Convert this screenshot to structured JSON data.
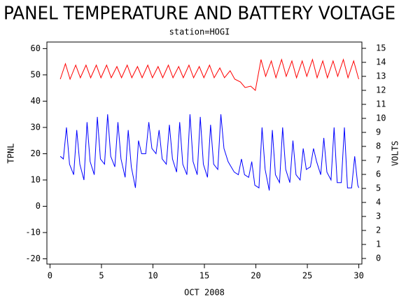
{
  "chart_data": {
    "type": "line",
    "title": "PANEL TEMPERATURE AND BATTERY VOLTAGE",
    "subtitle": "station=HOGI",
    "x_label": "OCT 2008",
    "y_label": "TPNL",
    "y2_label": "VOLTS",
    "xlim": [
      -0.3,
      30.3
    ],
    "xticks": [
      0,
      5,
      10,
      15,
      20,
      25,
      30
    ],
    "ylim": [
      -22,
      62.5
    ],
    "yticks": [
      -20,
      -10,
      0,
      10,
      20,
      30,
      40,
      50,
      60
    ],
    "y2lim": [
      -0.4,
      15.45
    ],
    "y2ticks": [
      0,
      1,
      2,
      3,
      4,
      5,
      6,
      7,
      8,
      9,
      10,
      11,
      12,
      13,
      14,
      15
    ],
    "series": [
      {
        "name": "TPNL",
        "color": "#0000ff",
        "axis": "y",
        "x": [
          1.0,
          1.3,
          1.6,
          1.9,
          2.3,
          2.6,
          2.9,
          3.3,
          3.6,
          3.9,
          4.3,
          4.6,
          4.9,
          5.3,
          5.6,
          5.9,
          6.3,
          6.6,
          6.9,
          7.3,
          7.6,
          7.9,
          8.3,
          8.6,
          8.9,
          9.3,
          9.6,
          9.9,
          10.3,
          10.6,
          10.9,
          11.3,
          11.6,
          11.9,
          12.3,
          12.6,
          12.9,
          13.3,
          13.6,
          13.9,
          14.3,
          14.6,
          14.9,
          15.3,
          15.6,
          15.9,
          16.3,
          16.6,
          16.9,
          17.3,
          17.6,
          17.9,
          18.3,
          18.6,
          18.9,
          19.3,
          19.6,
          19.9,
          20.3,
          20.6,
          20.9,
          21.3,
          21.6,
          21.9,
          22.3,
          22.6,
          22.9,
          23.3,
          23.6,
          23.9,
          24.3,
          24.6,
          24.9,
          25.3,
          25.6,
          25.9,
          26.3,
          26.6,
          26.9,
          27.3,
          27.6,
          27.9,
          28.3,
          28.6,
          28.9,
          29.3,
          29.6,
          29.9,
          30.0
        ],
        "values": [
          19,
          18,
          30,
          16,
          12,
          29,
          16,
          10,
          32,
          17,
          12,
          34,
          18,
          16,
          35,
          19,
          15,
          32,
          18,
          11,
          29,
          15,
          7,
          25,
          20,
          20,
          32,
          22,
          20,
          29,
          18,
          16,
          31,
          18,
          13,
          32,
          16,
          12,
          35,
          17,
          12,
          34,
          16,
          11,
          31,
          16,
          14,
          35,
          22,
          17,
          15,
          13,
          12,
          18,
          12,
          11,
          17,
          8,
          7,
          30,
          14,
          6,
          29,
          12,
          9,
          30,
          14,
          9,
          25,
          12,
          10,
          22,
          14,
          15,
          22,
          17,
          12,
          26,
          13,
          10,
          30,
          9,
          9,
          30,
          7,
          7,
          19,
          8,
          7
        ]
      },
      {
        "name": "VOLTS",
        "color": "#ff0000",
        "axis": "y2",
        "x": [
          1.0,
          1.5,
          1.95,
          2.5,
          2.95,
          3.5,
          3.95,
          4.5,
          4.95,
          5.5,
          5.95,
          6.5,
          6.95,
          7.5,
          7.95,
          8.5,
          8.95,
          9.5,
          9.95,
          10.5,
          10.95,
          11.5,
          11.95,
          12.5,
          12.95,
          13.5,
          13.95,
          14.5,
          14.95,
          15.5,
          15.95,
          16.5,
          16.95,
          17.5,
          17.95,
          18.5,
          18.95,
          19.5,
          19.95,
          20.5,
          20.95,
          21.5,
          21.95,
          22.5,
          22.95,
          23.5,
          23.95,
          24.5,
          24.95,
          25.5,
          25.95,
          26.5,
          26.95,
          27.5,
          27.95,
          28.5,
          28.95,
          29.5,
          29.95,
          30.0
        ],
        "values": [
          12.8,
          13.9,
          12.8,
          13.8,
          12.9,
          13.8,
          12.9,
          13.8,
          12.9,
          13.8,
          12.9,
          13.7,
          12.9,
          13.8,
          12.9,
          13.7,
          12.9,
          13.8,
          12.9,
          13.7,
          12.9,
          13.8,
          12.9,
          13.7,
          12.9,
          13.8,
          12.9,
          13.7,
          12.9,
          13.8,
          12.9,
          13.6,
          12.9,
          13.4,
          12.8,
          12.6,
          12.2,
          12.3,
          12.0,
          14.2,
          13.0,
          14.1,
          12.9,
          14.2,
          13.0,
          14.1,
          12.9,
          14.1,
          13.0,
          14.2,
          12.9,
          14.1,
          12.9,
          14.1,
          13.0,
          14.2,
          12.9,
          14.1,
          12.9,
          12.8
        ]
      }
    ]
  }
}
